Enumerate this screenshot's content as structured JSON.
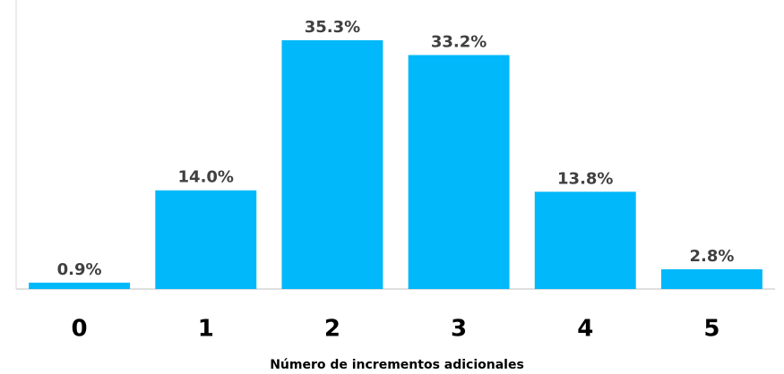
{
  "chart_data": {
    "type": "bar",
    "x_label": "Número de incrementos adicionales",
    "categories": [
      "0",
      "1",
      "2",
      "3",
      "4",
      "5"
    ],
    "values": [
      0.9,
      14.0,
      35.3,
      33.2,
      13.8,
      2.8
    ],
    "value_labels": [
      "0.9%",
      "14.0%",
      "35.3%",
      "33.2%",
      "13.8%",
      "2.8%"
    ],
    "color": "#00b8fa"
  }
}
